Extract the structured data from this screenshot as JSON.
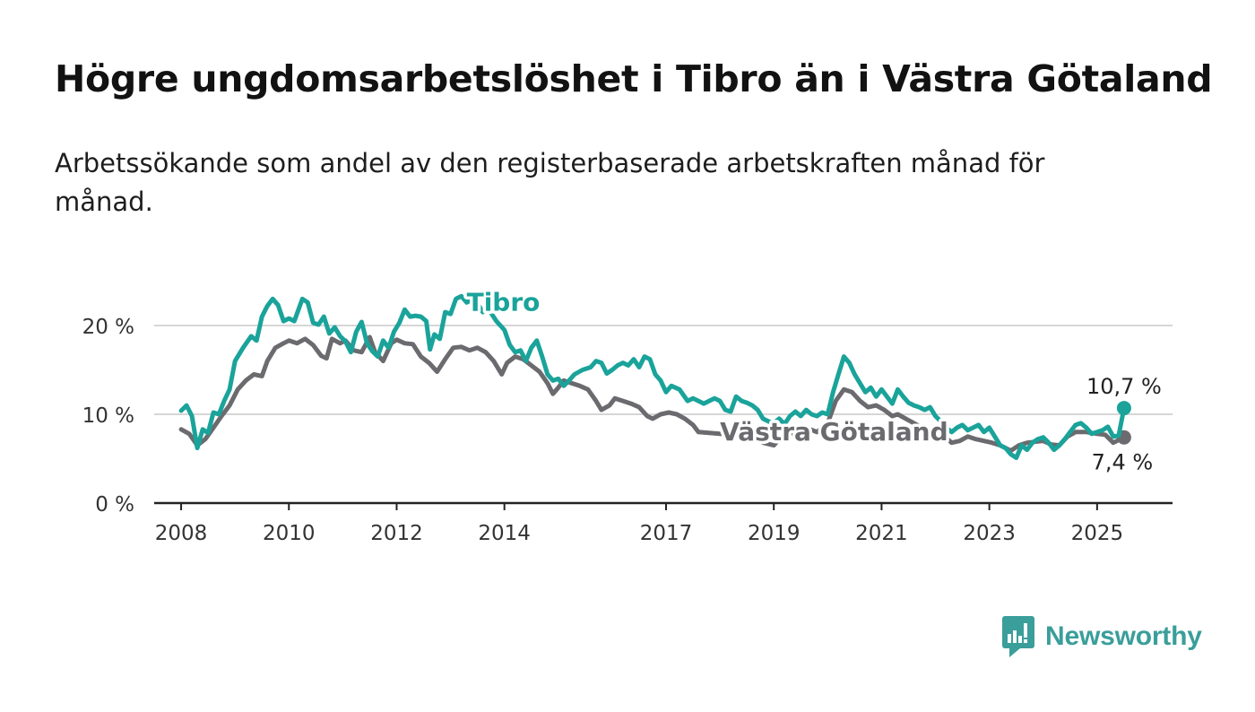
{
  "title": "Högre ungdomsarbetslöshet i Tibro än i Västra Götaland",
  "subtitle": "Arbetssökande som andel av den registerbaserade arbetskraften månad för månad.",
  "brand": {
    "name": "Newsworthy",
    "icon": "newsworthy-logo-icon",
    "color": "#3a9e9a"
  },
  "chart_data": {
    "type": "line",
    "ylim": [
      0,
      20
    ],
    "yticks": [
      {
        "value": 0,
        "label": "0 %"
      },
      {
        "value": 10,
        "label": "10 %"
      },
      {
        "value": 20,
        "label": "20 %"
      }
    ],
    "xlim": [
      2007.5,
      2026.4
    ],
    "xticks": [
      {
        "value": 2008,
        "label": "2008"
      },
      {
        "value": 2010,
        "label": "2010"
      },
      {
        "value": 2012,
        "label": "2012"
      },
      {
        "value": 2014,
        "label": "2014"
      },
      {
        "value": 2017,
        "label": "2017"
      },
      {
        "value": 2019,
        "label": "2019"
      },
      {
        "value": 2021,
        "label": "2021"
      },
      {
        "value": 2023,
        "label": "2023"
      },
      {
        "value": 2025,
        "label": "2025"
      }
    ],
    "grid": true,
    "legend": "inline labels",
    "series": [
      {
        "name": "Tibro",
        "color": "#1aa39a",
        "label_at": [
          2013.3,
          22.6
        ],
        "end_label": "10,7 %",
        "points": [
          [
            2008.0,
            10.4
          ],
          [
            2008.1,
            11.0
          ],
          [
            2008.2,
            9.8
          ],
          [
            2008.3,
            6.2
          ],
          [
            2008.4,
            8.3
          ],
          [
            2008.5,
            7.9
          ],
          [
            2008.6,
            10.2
          ],
          [
            2008.7,
            10.0
          ],
          [
            2008.8,
            11.5
          ],
          [
            2008.9,
            12.8
          ],
          [
            2009.0,
            16.0
          ],
          [
            2009.15,
            17.5
          ],
          [
            2009.3,
            18.8
          ],
          [
            2009.4,
            18.3
          ],
          [
            2009.5,
            21.0
          ],
          [
            2009.6,
            22.2
          ],
          [
            2009.7,
            23.0
          ],
          [
            2009.8,
            22.3
          ],
          [
            2009.9,
            20.5
          ],
          [
            2010.0,
            20.8
          ],
          [
            2010.1,
            20.5
          ],
          [
            2010.25,
            23.0
          ],
          [
            2010.35,
            22.6
          ],
          [
            2010.45,
            20.3
          ],
          [
            2010.55,
            20.1
          ],
          [
            2010.65,
            21.0
          ],
          [
            2010.75,
            19.1
          ],
          [
            2010.85,
            19.8
          ],
          [
            2010.95,
            18.8
          ],
          [
            2011.05,
            18.2
          ],
          [
            2011.15,
            17.0
          ],
          [
            2011.25,
            19.3
          ],
          [
            2011.35,
            20.4
          ],
          [
            2011.45,
            18.0
          ],
          [
            2011.55,
            17.1
          ],
          [
            2011.65,
            16.5
          ],
          [
            2011.75,
            18.3
          ],
          [
            2011.85,
            17.5
          ],
          [
            2011.95,
            19.3
          ],
          [
            2012.05,
            20.3
          ],
          [
            2012.15,
            21.8
          ],
          [
            2012.25,
            21.0
          ],
          [
            2012.35,
            21.1
          ],
          [
            2012.45,
            21.0
          ],
          [
            2012.55,
            20.5
          ],
          [
            2012.62,
            17.3
          ],
          [
            2012.7,
            19.0
          ],
          [
            2012.8,
            18.5
          ],
          [
            2012.9,
            21.5
          ],
          [
            2013.0,
            21.3
          ],
          [
            2013.1,
            23.0
          ],
          [
            2013.2,
            23.3
          ],
          [
            2013.3,
            22.6
          ],
          [
            2013.4,
            22.9
          ],
          [
            2013.5,
            22.5
          ],
          [
            2013.6,
            21.5
          ],
          [
            2013.7,
            21.9
          ],
          [
            2013.85,
            20.5
          ],
          [
            2014.0,
            19.5
          ],
          [
            2014.1,
            17.8
          ],
          [
            2014.2,
            17.0
          ],
          [
            2014.3,
            17.2
          ],
          [
            2014.4,
            16.0
          ],
          [
            2014.5,
            17.5
          ],
          [
            2014.6,
            18.3
          ],
          [
            2014.7,
            16.5
          ],
          [
            2014.8,
            14.5
          ],
          [
            2014.9,
            13.8
          ],
          [
            2015.0,
            14.0
          ],
          [
            2015.1,
            13.2
          ],
          [
            2015.2,
            13.8
          ],
          [
            2015.3,
            14.5
          ],
          [
            2015.45,
            15.0
          ],
          [
            2015.6,
            15.3
          ],
          [
            2015.7,
            16.0
          ],
          [
            2015.8,
            15.8
          ],
          [
            2015.9,
            14.6
          ],
          [
            2016.0,
            15.0
          ],
          [
            2016.1,
            15.5
          ],
          [
            2016.2,
            15.8
          ],
          [
            2016.3,
            15.5
          ],
          [
            2016.4,
            16.2
          ],
          [
            2016.5,
            15.3
          ],
          [
            2016.6,
            16.5
          ],
          [
            2016.7,
            16.2
          ],
          [
            2016.8,
            14.5
          ],
          [
            2016.9,
            13.8
          ],
          [
            2017.0,
            12.5
          ],
          [
            2017.1,
            13.2
          ],
          [
            2017.25,
            12.8
          ],
          [
            2017.4,
            11.5
          ],
          [
            2017.5,
            11.8
          ],
          [
            2017.6,
            11.5
          ],
          [
            2017.7,
            11.2
          ],
          [
            2017.8,
            11.5
          ],
          [
            2017.9,
            11.8
          ],
          [
            2018.0,
            11.5
          ],
          [
            2018.1,
            10.5
          ],
          [
            2018.2,
            10.3
          ],
          [
            2018.3,
            12.0
          ],
          [
            2018.4,
            11.5
          ],
          [
            2018.5,
            11.3
          ],
          [
            2018.6,
            11.0
          ],
          [
            2018.7,
            10.5
          ],
          [
            2018.8,
            9.5
          ],
          [
            2018.9,
            9.2
          ],
          [
            2019.0,
            9.0
          ],
          [
            2019.1,
            9.5
          ],
          [
            2019.2,
            8.9
          ],
          [
            2019.3,
            9.8
          ],
          [
            2019.4,
            10.3
          ],
          [
            2019.5,
            9.8
          ],
          [
            2019.6,
            10.5
          ],
          [
            2019.7,
            10.0
          ],
          [
            2019.8,
            9.8
          ],
          [
            2019.9,
            10.2
          ],
          [
            2020.0,
            10.0
          ],
          [
            2020.1,
            12.5
          ],
          [
            2020.2,
            14.5
          ],
          [
            2020.3,
            16.5
          ],
          [
            2020.4,
            15.8
          ],
          [
            2020.5,
            14.5
          ],
          [
            2020.6,
            13.5
          ],
          [
            2020.7,
            12.5
          ],
          [
            2020.8,
            13.0
          ],
          [
            2020.9,
            12.0
          ],
          [
            2021.0,
            12.8
          ],
          [
            2021.1,
            12.0
          ],
          [
            2021.2,
            11.2
          ],
          [
            2021.3,
            12.8
          ],
          [
            2021.4,
            12.0
          ],
          [
            2021.5,
            11.3
          ],
          [
            2021.6,
            11.0
          ],
          [
            2021.7,
            10.8
          ],
          [
            2021.8,
            10.5
          ],
          [
            2021.9,
            10.8
          ],
          [
            2022.0,
            9.8
          ],
          [
            2022.1,
            9.2
          ],
          [
            2022.2,
            8.5
          ],
          [
            2022.3,
            8.0
          ],
          [
            2022.4,
            8.5
          ],
          [
            2022.5,
            8.8
          ],
          [
            2022.6,
            8.2
          ],
          [
            2022.7,
            8.5
          ],
          [
            2022.8,
            8.8
          ],
          [
            2022.9,
            8.0
          ],
          [
            2023.0,
            8.5
          ],
          [
            2023.1,
            7.5
          ],
          [
            2023.2,
            6.5
          ],
          [
            2023.3,
            6.2
          ],
          [
            2023.4,
            5.5
          ],
          [
            2023.5,
            5.1
          ],
          [
            2023.6,
            6.5
          ],
          [
            2023.7,
            6.0
          ],
          [
            2023.8,
            6.8
          ],
          [
            2023.9,
            7.2
          ],
          [
            2024.0,
            7.4
          ],
          [
            2024.1,
            6.8
          ],
          [
            2024.2,
            6.0
          ],
          [
            2024.3,
            6.5
          ],
          [
            2024.4,
            7.2
          ],
          [
            2024.5,
            8.0
          ],
          [
            2024.6,
            8.8
          ],
          [
            2024.7,
            9.0
          ],
          [
            2024.8,
            8.5
          ],
          [
            2024.9,
            7.8
          ],
          [
            2025.0,
            8.0
          ],
          [
            2025.1,
            8.2
          ],
          [
            2025.2,
            8.6
          ],
          [
            2025.3,
            7.5
          ],
          [
            2025.4,
            7.6
          ],
          [
            2025.5,
            10.7
          ]
        ]
      },
      {
        "name": "Västra Götaland",
        "color": "#6b6b6f",
        "label_at": [
          2018.0,
          8.0
        ],
        "end_label": "7,4 %",
        "points": [
          [
            2008.0,
            8.3
          ],
          [
            2008.15,
            7.8
          ],
          [
            2008.3,
            6.5
          ],
          [
            2008.45,
            7.2
          ],
          [
            2008.6,
            8.5
          ],
          [
            2008.75,
            9.8
          ],
          [
            2008.9,
            11.0
          ],
          [
            2009.05,
            12.8
          ],
          [
            2009.2,
            13.8
          ],
          [
            2009.35,
            14.5
          ],
          [
            2009.5,
            14.3
          ],
          [
            2009.6,
            16.0
          ],
          [
            2009.75,
            17.5
          ],
          [
            2009.9,
            18.0
          ],
          [
            2010.0,
            18.3
          ],
          [
            2010.15,
            18.0
          ],
          [
            2010.3,
            18.5
          ],
          [
            2010.45,
            17.8
          ],
          [
            2010.6,
            16.6
          ],
          [
            2010.7,
            16.3
          ],
          [
            2010.8,
            18.5
          ],
          [
            2010.95,
            18.0
          ],
          [
            2011.05,
            18.3
          ],
          [
            2011.2,
            17.2
          ],
          [
            2011.35,
            17.0
          ],
          [
            2011.5,
            18.7
          ],
          [
            2011.6,
            17.0
          ],
          [
            2011.75,
            16.0
          ],
          [
            2011.9,
            18.0
          ],
          [
            2012.0,
            18.4
          ],
          [
            2012.15,
            18.0
          ],
          [
            2012.3,
            17.9
          ],
          [
            2012.45,
            16.5
          ],
          [
            2012.6,
            15.8
          ],
          [
            2012.75,
            14.8
          ],
          [
            2012.9,
            16.2
          ],
          [
            2013.05,
            17.5
          ],
          [
            2013.2,
            17.6
          ],
          [
            2013.35,
            17.2
          ],
          [
            2013.5,
            17.5
          ],
          [
            2013.65,
            17.0
          ],
          [
            2013.8,
            16.0
          ],
          [
            2013.95,
            14.5
          ],
          [
            2014.05,
            15.8
          ],
          [
            2014.2,
            16.5
          ],
          [
            2014.35,
            16.2
          ],
          [
            2014.5,
            15.5
          ],
          [
            2014.65,
            14.8
          ],
          [
            2014.8,
            13.5
          ],
          [
            2014.9,
            12.3
          ],
          [
            2015.0,
            13.0
          ],
          [
            2015.1,
            13.8
          ],
          [
            2015.25,
            13.5
          ],
          [
            2015.4,
            13.2
          ],
          [
            2015.55,
            12.8
          ],
          [
            2015.7,
            11.5
          ],
          [
            2015.8,
            10.5
          ],
          [
            2015.95,
            11.0
          ],
          [
            2016.05,
            11.8
          ],
          [
            2016.2,
            11.5
          ],
          [
            2016.35,
            11.2
          ],
          [
            2016.5,
            10.8
          ],
          [
            2016.65,
            9.8
          ],
          [
            2016.75,
            9.5
          ],
          [
            2016.9,
            10.0
          ],
          [
            2017.05,
            10.2
          ],
          [
            2017.2,
            10.0
          ],
          [
            2017.35,
            9.5
          ],
          [
            2017.5,
            8.8
          ],
          [
            2017.6,
            8.0
          ],
          [
            2018.6,
            7.5
          ],
          [
            2018.8,
            6.8
          ],
          [
            2019.0,
            6.5
          ],
          [
            2019.1,
            7.2
          ],
          [
            2019.3,
            7.8
          ],
          [
            2019.6,
            8.5
          ],
          [
            2019.8,
            8.0
          ],
          [
            2020.0,
            9.0
          ],
          [
            2020.15,
            11.5
          ],
          [
            2020.3,
            12.8
          ],
          [
            2020.45,
            12.5
          ],
          [
            2020.6,
            11.5
          ],
          [
            2020.75,
            10.8
          ],
          [
            2020.9,
            11.0
          ],
          [
            2021.05,
            10.5
          ],
          [
            2021.2,
            9.8
          ],
          [
            2021.3,
            10.0
          ],
          [
            2021.75,
            8.5
          ],
          [
            2021.9,
            7.8
          ],
          [
            2022.0,
            8.0
          ],
          [
            2022.15,
            7.6
          ],
          [
            2022.3,
            6.8
          ],
          [
            2022.45,
            7.0
          ],
          [
            2022.6,
            7.5
          ],
          [
            2022.75,
            7.2
          ],
          [
            2022.9,
            7.0
          ],
          [
            2023.05,
            6.8
          ],
          [
            2023.2,
            6.5
          ],
          [
            2023.4,
            5.9
          ],
          [
            2023.55,
            6.5
          ],
          [
            2023.7,
            6.8
          ],
          [
            2023.85,
            6.9
          ],
          [
            2024.0,
            7.0
          ],
          [
            2024.15,
            6.6
          ],
          [
            2024.3,
            6.5
          ],
          [
            2024.45,
            7.5
          ],
          [
            2024.6,
            8.0
          ],
          [
            2024.8,
            8.0
          ],
          [
            2025.0,
            7.8
          ],
          [
            2025.15,
            7.7
          ],
          [
            2025.3,
            6.8
          ],
          [
            2025.5,
            7.4
          ]
        ]
      }
    ]
  }
}
